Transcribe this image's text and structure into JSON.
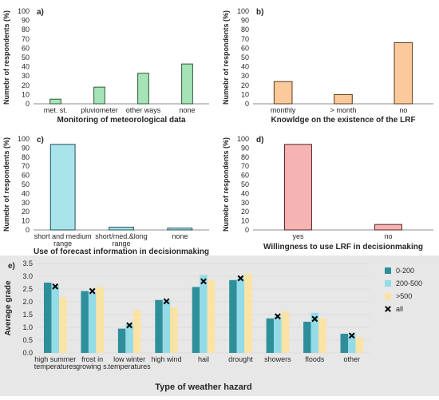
{
  "chart_data": [
    {
      "panel": "a)",
      "type": "bar",
      "categories": [
        "met. st.",
        "pluviometer",
        "other ways",
        "none"
      ],
      "values": [
        5,
        18,
        33,
        43
      ],
      "xlabel": "Monitoring of meteorological data",
      "ylabel": "Numebr of respondents (%)",
      "ylim": [
        0,
        100
      ],
      "yticks": [
        0,
        10,
        20,
        30,
        40,
        50,
        60,
        70,
        80,
        90,
        100
      ],
      "color": "#a6e3b7",
      "edge": "#2a5a38",
      "grid": false
    },
    {
      "panel": "b)",
      "type": "bar",
      "categories": [
        "monthly",
        "> month",
        "no"
      ],
      "values": [
        24,
        10,
        66
      ],
      "xlabel": "Knowldge on the existence of the LRF",
      "ylabel": "Numebr of respondents (%)",
      "ylim": [
        0,
        100
      ],
      "yticks": [
        0,
        10,
        20,
        30,
        40,
        50,
        60,
        70,
        80,
        90,
        100
      ],
      "color": "#fbc99b",
      "edge": "#5a3a1c",
      "grid": false
    },
    {
      "panel": "c)",
      "type": "bar",
      "categories": [
        [
          "short and medium",
          "range"
        ],
        [
          "short/med.&long",
          "range"
        ],
        [
          "none"
        ]
      ],
      "values": [
        94,
        3,
        2
      ],
      "xlabel": "Use of forecast information in decisionmaking",
      "ylabel": "Numebr of respondents (%)",
      "ylim": [
        0,
        100
      ],
      "yticks": [
        0,
        10,
        20,
        30,
        40,
        50,
        60,
        70,
        80,
        90,
        100
      ],
      "color": "#a9e4eb",
      "edge": "#1f4f58",
      "grid": false
    },
    {
      "panel": "d)",
      "type": "bar",
      "categories": [
        "yes",
        "no"
      ],
      "values": [
        94,
        6
      ],
      "xlabel": "Willingness to use LRF in decisionmaking",
      "ylabel": "Numebr of respondents (%)",
      "ylim": [
        0,
        100
      ],
      "yticks": [
        0,
        10,
        20,
        30,
        40,
        50,
        60,
        70,
        80,
        90,
        100
      ],
      "color": "#f6b3b3",
      "edge": "#5a2424",
      "grid": false
    },
    {
      "panel": "e)",
      "type": "bar",
      "categories": [
        [
          "high summer",
          "temperatures"
        ],
        [
          "frost in",
          "growing s."
        ],
        [
          "low winter",
          "temperatures"
        ],
        [
          "high wind"
        ],
        [
          "hail"
        ],
        [
          "drought"
        ],
        [
          "showers"
        ],
        [
          "floods"
        ],
        [
          "other"
        ]
      ],
      "series": [
        {
          "name": "0-200",
          "color": "#2e8f9a",
          "values": [
            2.75,
            2.42,
            0.95,
            2.07,
            2.58,
            2.85,
            1.35,
            1.22,
            0.75
          ]
        },
        {
          "name": "200-500",
          "color": "#94dbe8",
          "values": [
            2.65,
            2.35,
            1.12,
            2.05,
            3.05,
            2.92,
            1.42,
            1.57,
            0.72
          ]
        },
        {
          "name": ">500",
          "color": "#fbe3a4",
          "values": [
            2.18,
            2.57,
            1.68,
            1.78,
            2.85,
            3.1,
            1.62,
            1.35,
            0.6
          ]
        }
      ],
      "markers": {
        "name": "all",
        "values": [
          2.6,
          2.42,
          1.08,
          2.02,
          2.8,
          2.92,
          1.43,
          1.33,
          0.68
        ]
      },
      "xlabel": "Type of weather hazard",
      "ylabel": "Average grade",
      "ylim": [
        0,
        3.5
      ],
      "yticks": [
        0.0,
        0.5,
        1.0,
        1.5,
        2.0,
        2.5,
        3.0,
        3.5
      ],
      "grid": true,
      "legend": "right",
      "background": "#e7e7e7"
    }
  ]
}
